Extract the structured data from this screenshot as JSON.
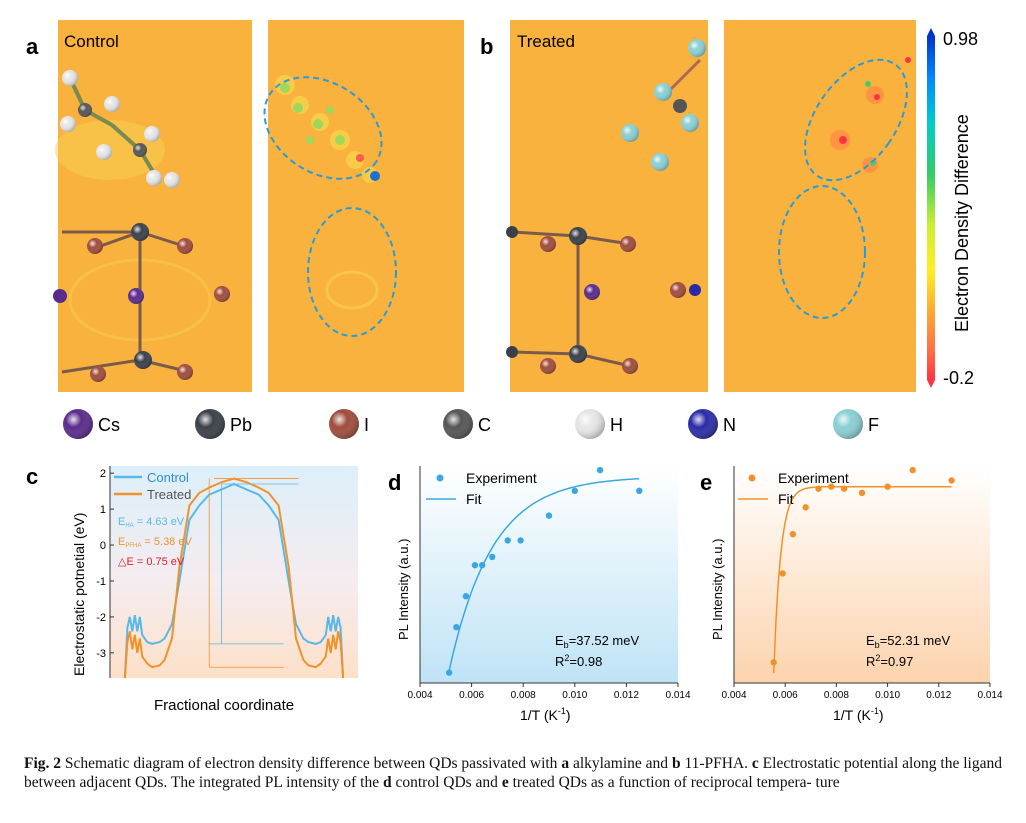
{
  "figure": {
    "panel_letters": {
      "a": "a",
      "b": "b",
      "c": "c",
      "d": "d",
      "e": "e"
    },
    "panel_a_title": "Control",
    "panel_b_title": "Treated",
    "colorbar": {
      "max_label": "0.98",
      "min_label": "-0.2",
      "title": "Electron Density Difference",
      "colors": [
        "#0033cc",
        "#0088ff",
        "#00cccc",
        "#33cc66",
        "#ccee33",
        "#ffee22",
        "#ffaa33",
        "#ff7744",
        "#ff3344"
      ]
    },
    "map_background_color": "#f9b23e",
    "atom_legend": [
      {
        "label": "Cs",
        "color": "#5a2a8c"
      },
      {
        "label": "Pb",
        "color": "#3a3f48"
      },
      {
        "label": "I",
        "color": "#a04c3c"
      },
      {
        "label": "C",
        "color": "#555555"
      },
      {
        "label": "H",
        "color": "#e6e6e6"
      },
      {
        "label": "N",
        "color": "#2a2aa8"
      },
      {
        "label": "F",
        "color": "#8ad0d4"
      }
    ]
  },
  "chart_data": [
    {
      "panel": "c",
      "type": "line",
      "title": "",
      "xlabel": "Fractional coordinate",
      "ylabel": "Electrostatic potnetial (eV)",
      "ylim": [
        -3.7,
        2.2
      ],
      "yticks": [
        2,
        1,
        0,
        -1,
        -2,
        -3
      ],
      "x_range": [
        0,
        1
      ],
      "legend": [
        "Control",
        "Treated"
      ],
      "series": [
        {
          "name": "Control",
          "color": "#5ab8e8",
          "x": [
            0.06,
            0.07,
            0.08,
            0.09,
            0.1,
            0.11,
            0.12,
            0.13,
            0.15,
            0.17,
            0.2,
            0.22,
            0.25,
            0.28,
            0.32,
            0.36,
            0.4,
            0.45,
            0.5,
            0.55,
            0.6,
            0.64,
            0.68,
            0.72,
            0.75,
            0.78,
            0.8,
            0.83,
            0.85,
            0.87,
            0.88,
            0.89,
            0.9,
            0.91,
            0.92,
            0.93,
            0.94
          ],
          "y": [
            -3.7,
            -2.3,
            -2.0,
            -2.4,
            -1.95,
            -2.4,
            -2.0,
            -2.5,
            -2.7,
            -2.75,
            -2.7,
            -2.6,
            -2.2,
            -1.0,
            0.7,
            1.1,
            1.4,
            1.55,
            1.7,
            1.55,
            1.4,
            1.1,
            0.7,
            -1.0,
            -2.2,
            -2.6,
            -2.7,
            -2.75,
            -2.7,
            -2.5,
            -2.0,
            -2.4,
            -1.95,
            -2.4,
            -2.0,
            -2.3,
            -3.7
          ]
        },
        {
          "name": "Treated",
          "color": "#f0922a",
          "x": [
            0.06,
            0.07,
            0.08,
            0.09,
            0.1,
            0.11,
            0.12,
            0.13,
            0.15,
            0.17,
            0.2,
            0.22,
            0.25,
            0.28,
            0.32,
            0.36,
            0.4,
            0.45,
            0.5,
            0.55,
            0.6,
            0.64,
            0.68,
            0.72,
            0.75,
            0.78,
            0.8,
            0.83,
            0.85,
            0.87,
            0.88,
            0.89,
            0.9,
            0.91,
            0.92,
            0.93,
            0.94
          ],
          "y": [
            -3.7,
            -2.7,
            -2.4,
            -2.9,
            -2.5,
            -3.0,
            -2.6,
            -3.1,
            -3.3,
            -3.4,
            -3.35,
            -3.2,
            -2.6,
            -0.6,
            1.1,
            1.45,
            1.6,
            1.75,
            1.85,
            1.75,
            1.6,
            1.45,
            1.1,
            -0.6,
            -2.6,
            -3.2,
            -3.35,
            -3.4,
            -3.3,
            -3.1,
            -2.6,
            -3.0,
            -2.5,
            -2.9,
            -2.4,
            -2.7,
            -3.7
          ]
        }
      ],
      "annotations": [
        {
          "prefix": "E",
          "sub": "HA",
          "value": " = 4.63 eV",
          "color": "#5ab8e8"
        },
        {
          "prefix": "E",
          "sub": "PFHA",
          "value": " = 5.38 eV",
          "color": "#f0922a"
        },
        {
          "prefix": "△E",
          "sub": "",
          "value": " =  0.75 eV",
          "color": "#e0202a"
        }
      ]
    },
    {
      "panel": "d",
      "type": "scatter",
      "xlabel": "1/T (K",
      "xlabel_sup": "-1",
      "xlabel_close": ")",
      "ylabel": "PL Intensity (a.u.)",
      "xlim": [
        0.004,
        0.014
      ],
      "xticks": [
        "0.004",
        "0.006",
        "0.008",
        "0.010",
        "0.012",
        "0.014"
      ],
      "ylim": [
        0,
        1.05
      ],
      "legend": [
        "Experiment",
        "Fit"
      ],
      "color": "#3aa8e0",
      "points_x": [
        0.00513,
        0.00541,
        0.00578,
        0.00613,
        0.00641,
        0.0068,
        0.0074,
        0.0079,
        0.009,
        0.01,
        0.01098,
        0.0125
      ],
      "points_y": [
        0.05,
        0.27,
        0.42,
        0.57,
        0.57,
        0.61,
        0.69,
        0.69,
        0.81,
        0.93,
        1.03,
        0.93
      ],
      "fit": {
        "E_b_meV": 37.52,
        "R2": 0.98,
        "A": 1.0,
        "B": 0.94,
        "k": 600
      },
      "stats_eb_prefix": "E",
      "stats_eb_sub": "b",
      "stats_eb_value": "=37.52 meV",
      "stats_r2_prefix": "R",
      "stats_r2_sup": "2",
      "stats_r2_value": "=0.98"
    },
    {
      "panel": "e",
      "type": "scatter",
      "xlabel": "1/T (K",
      "xlabel_sup": "-1",
      "xlabel_close": ")",
      "ylabel": "PL Intensity (a.u.)",
      "xlim": [
        0.004,
        0.014
      ],
      "xticks": [
        "0.004",
        "0.006",
        "0.008",
        "0.010",
        "0.012",
        "0.014"
      ],
      "ylim": [
        0,
        1.05
      ],
      "legend": [
        "Experiment",
        "Fit"
      ],
      "color": "#f0922a",
      "points_x": [
        0.00555,
        0.0059,
        0.0063,
        0.0068,
        0.0073,
        0.0078,
        0.0083,
        0.009,
        0.01,
        0.01098,
        0.0125
      ],
      "points_y": [
        0.1,
        0.53,
        0.72,
        0.85,
        0.94,
        0.95,
        0.94,
        0.92,
        0.95,
        1.03,
        0.98
      ],
      "fit": {
        "E_b_meV": 52.31,
        "R2": 0.97,
        "A": 0.95,
        "B": 0.95,
        "k": 3700
      },
      "stats_eb_prefix": "E",
      "stats_eb_sub": "b",
      "stats_eb_value": "=52.31 meV",
      "stats_r2_prefix": "R",
      "stats_r2_sup": "2",
      "stats_r2_value": "=0.97"
    }
  ],
  "caption": {
    "label": "Fig. 2",
    "t1": "  Schematic diagram of electron density difference between QDs passivated with ",
    "b1": "a",
    "t2": " alkylamine and ",
    "b2": "b",
    "t3": " 11-PFHA. ",
    "b3": "c",
    "t4": " Electrostatic potential along the ligand between adjacent QDs. The integrated PL intensity of the ",
    "b4": "d",
    "t5": " control QDs and ",
    "b5": "e",
    "t6": " treated QDs as a function of reciprocal tempera- ture"
  }
}
